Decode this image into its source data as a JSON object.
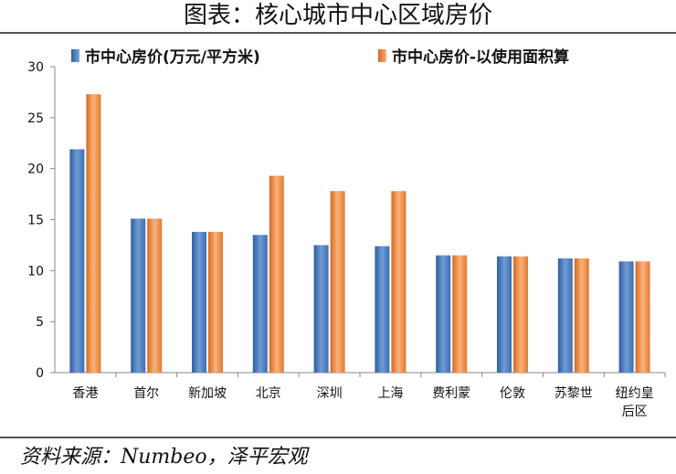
{
  "title": "图表：核心城市中心区域房价",
  "source": "资料来源：Numbeo，泽平宏观",
  "chart_data": {
    "type": "bar",
    "categories": [
      "香港",
      "首尔",
      "新加坡",
      "北京",
      "深圳",
      "上海",
      "费利蒙",
      "伦敦",
      "苏黎世",
      "纽约皇后区"
    ],
    "series": [
      {
        "name": "市中心房价(万元/平方米)",
        "color": "#4a7ebb",
        "values": [
          21.9,
          15.1,
          13.8,
          13.5,
          12.5,
          12.4,
          11.5,
          11.4,
          11.2,
          10.9
        ]
      },
      {
        "name": "市中心房价-以使用面积算",
        "color": "#f08a3c",
        "values": [
          27.3,
          15.1,
          13.8,
          19.3,
          17.8,
          17.8,
          11.5,
          11.4,
          11.2,
          10.9
        ]
      }
    ],
    "ylim": [
      0,
      30
    ],
    "yticks": [
      0,
      5,
      10,
      15,
      20,
      25,
      30
    ],
    "grid": false,
    "legend": "top"
  }
}
